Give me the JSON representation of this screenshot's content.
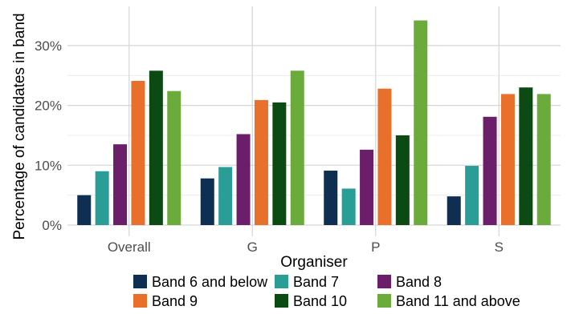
{
  "chart_data": {
    "type": "bar",
    "title": "",
    "xlabel": "Organiser",
    "ylabel": "Percentage of candidates in band",
    "categories": [
      "Overall",
      "G",
      "P",
      "S"
    ],
    "ylim": [
      0,
      35
    ],
    "yticks": [
      0,
      10,
      20,
      30
    ],
    "ytick_labels": [
      "0%",
      "10%",
      "20%",
      "30%"
    ],
    "grid": true,
    "legend_position": "bottom",
    "series": [
      {
        "name": "Band 6 and below",
        "color": "#0e2f52",
        "values": [
          5.0,
          7.8,
          9.1,
          4.8
        ]
      },
      {
        "name": "Band 7",
        "color": "#2a9d97",
        "values": [
          9.0,
          9.7,
          6.1,
          9.9
        ]
      },
      {
        "name": "Band 8",
        "color": "#6b1f6b",
        "values": [
          13.5,
          15.2,
          12.6,
          18.1
        ]
      },
      {
        "name": "Band 9",
        "color": "#e8702a",
        "values": [
          24.1,
          20.9,
          22.8,
          21.9
        ]
      },
      {
        "name": "Band 10",
        "color": "#0b4a12",
        "values": [
          25.8,
          20.5,
          15.0,
          23.0
        ]
      },
      {
        "name": "Band 11 and above",
        "color": "#6aab3c",
        "values": [
          22.4,
          25.8,
          34.2,
          21.9
        ]
      }
    ]
  }
}
